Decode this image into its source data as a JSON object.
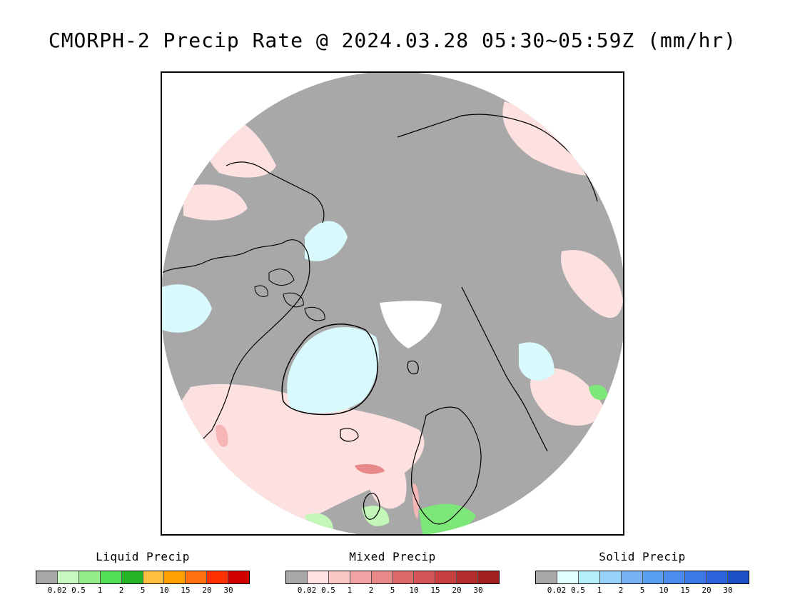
{
  "title": "CMORPH-2 Precip Rate @ 2024.03.28 05:30~05:59Z (mm/hr)",
  "map": {
    "projection": "north-polar-stereographic",
    "colors": {
      "no_precip": "#a8a8a8",
      "outside": "#ffffff",
      "coast": "#000000",
      "solid_light": "#d9fafc",
      "mixed_light": "#fde0e0",
      "mixed_mid": "#f6b6b6",
      "mixed_heavy": "#e88888",
      "liquid_light": "#c2f7b8",
      "liquid_mid": "#7ee77a"
    }
  },
  "legends": [
    {
      "title": "Liquid Precip",
      "ticks": [
        "0.02",
        "0.5",
        "1",
        "2",
        "5",
        "10",
        "15",
        "20",
        "30"
      ],
      "colors": [
        "#a8a8a8",
        "#c8fac0",
        "#94ef8a",
        "#55e05a",
        "#24b324",
        "#ffc040",
        "#ffa000",
        "#ff7010",
        "#ff3000",
        "#d00000"
      ]
    },
    {
      "title": "Mixed Precip",
      "ticks": [
        "0.02",
        "0.5",
        "1",
        "2",
        "5",
        "10",
        "15",
        "20",
        "30"
      ],
      "colors": [
        "#a8a8a8",
        "#ffe1e1",
        "#fac6c6",
        "#f2a4a4",
        "#e88888",
        "#df6a6a",
        "#d45555",
        "#c84040",
        "#b52c2c",
        "#a02020"
      ]
    },
    {
      "title": "Solid Precip",
      "ticks": [
        "0.02",
        "0.5",
        "1",
        "2",
        "5",
        "10",
        "15",
        "20",
        "30"
      ],
      "colors": [
        "#a8a8a8",
        "#e0ffff",
        "#b4f0fa",
        "#96d2fa",
        "#78b4f5",
        "#5aa0f0",
        "#4b8cf0",
        "#3c78e6",
        "#2d64dc",
        "#1e50c8"
      ]
    }
  ]
}
